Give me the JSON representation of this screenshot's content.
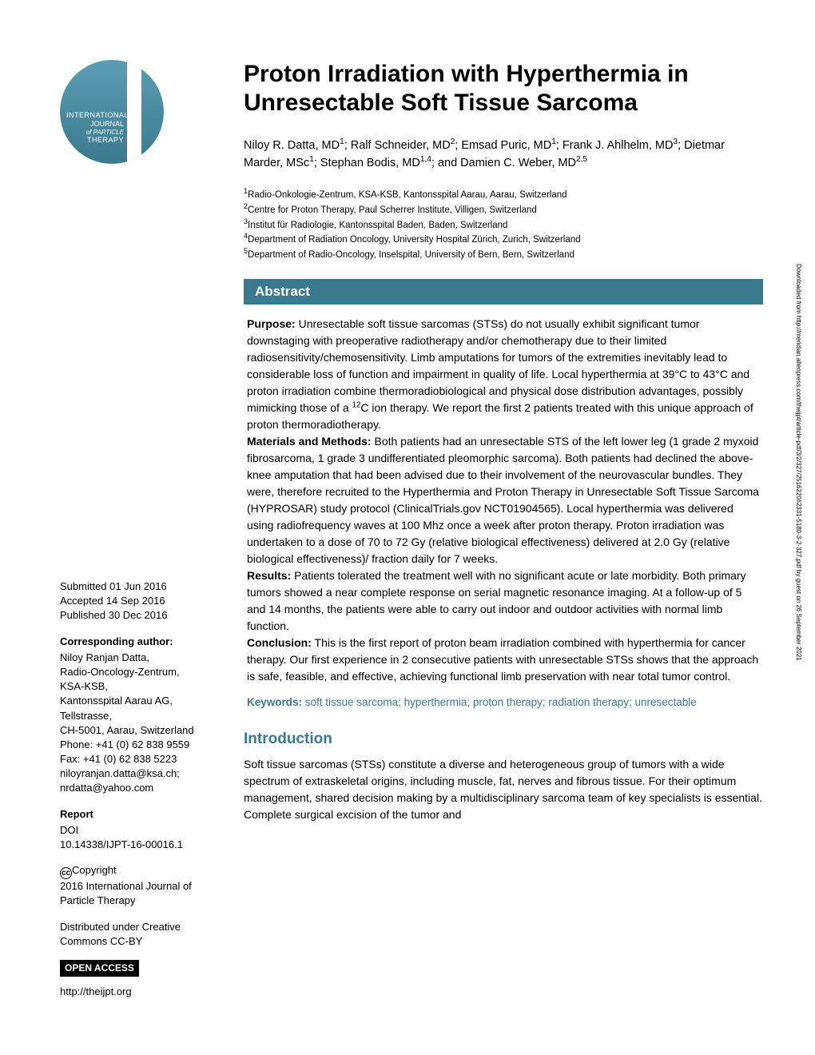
{
  "colors": {
    "brand": "#3b7a8e",
    "brand_light": "#5c9db3",
    "text": "#000000",
    "bg": "#ffffff",
    "badge_bg": "#000000",
    "badge_text": "#ffffff"
  },
  "logo": {
    "line1": "INTERNATIONAL",
    "line2": "JOURNAL",
    "line3": "of PARTICLE",
    "line4": "THERAPY"
  },
  "title": "Proton Irradiation with Hyperthermia in Unresectable Soft Tissue Sarcoma",
  "authors_html": "Niloy R. Datta, MD<sup>1</sup>; Ralf Schneider, MD<sup>2</sup>; Emsad Puric, MD<sup>1</sup>; Frank J. Ahlhelm, MD<sup>3</sup>; Dietmar Marder, MSc<sup>1</sup>; Stephan Bodis, MD<sup>1,4</sup>; and Damien C. Weber, MD<sup>2,5</sup>",
  "affiliations": [
    "Radio-Onkologie-Zentrum, KSA-KSB, Kantonsspital Aarau, Aarau, Switzerland",
    "Centre for Proton Therapy, Paul Scherrer Institute, Villigen, Switzerland",
    "Institut für Radiologie, Kantonsspital Baden, Baden, Switzerland",
    "Department of Radiation Oncology, University Hospital Zürich, Zurich, Switzerland",
    "Department of Radio-Oncology, Inselspital, University of Bern, Bern, Switzerland"
  ],
  "dates": {
    "submitted": "Submitted 01 Jun 2016",
    "accepted": "Accepted 14 Sep 2016",
    "published": "Published 30 Dec 2016"
  },
  "corresponding": {
    "heading": "Corresponding author:",
    "lines": [
      "Niloy Ranjan Datta,",
      "Radio-Oncology-Zentrum,",
      "KSA-KSB,",
      "Kantonsspital Aarau AG,",
      "Tellstrasse,",
      "CH-5001, Aarau, Switzerland",
      "Phone: +41 (0) 62 838 9559",
      "Fax: +41 (0) 62 838 5223",
      "niloyranjan.datta@ksa.ch;",
      "nrdatta@yahoo.com"
    ]
  },
  "report": {
    "heading": "Report",
    "doi_label": "DOI",
    "doi": "10.14338/IJPT-16-00016.1"
  },
  "copyright_text": "Copyright",
  "copyright_line": "2016 International Journal of Particle Therapy",
  "distributed": "Distributed under Creative Commons CC-BY",
  "open_access": "OPEN ACCESS",
  "website": "http://theijpt.org",
  "abstract": {
    "heading": "Abstract",
    "purpose_label": "Purpose:",
    "purpose": " Unresectable soft tissue sarcomas (STSs) do not usually exhibit significant tumor downstaging with preoperative radiotherapy and/or chemotherapy due to their limited radiosensitivity/chemosensitivity. Limb amputations for tumors of the extremities inevitably lead to considerable loss of function and impairment in quality of life. Local hyperthermia at 39°C to 43°C and proton irradiation combine thermoradiobiological and physical dose distribution advantages, possibly mimicking those of a ",
    "purpose_sup": "12",
    "purpose_cont": "C ion therapy. We report the first 2 patients treated with this unique approach of proton thermoradiotherapy.",
    "methods_label": "Materials and Methods:",
    "methods": " Both patients had an unresectable STS of the left lower leg (1 grade 2 myxoid fibrosarcoma, 1 grade 3 undifferentiated pleomorphic sarcoma). Both patients had declined the above-knee amputation that had been advised due to their involvement of the neurovascular bundles. They were, therefore recruited to the Hyperthermia and Proton Therapy in Unresectable Soft Tissue Sarcoma (HYPROSAR) study protocol (ClinicalTrials.gov NCT01904565). Local hyperthermia was delivered using radiofrequency waves at 100 Mhz once a week after proton therapy. Proton irradiation was undertaken to a dose of 70 to 72 Gy (relative biological effectiveness) delivered at 2.0 Gy (relative biological effectiveness)/ fraction daily for 7 weeks.",
    "results_label": "Results:",
    "results": " Patients tolerated the treatment well with no significant acute or late morbidity. Both primary tumors showed a near complete response on serial magnetic resonance imaging. At a follow-up of 5 and 14 months, the patients were able to carry out indoor and outdoor activities with normal limb function.",
    "conclusion_label": "Conclusion:",
    "conclusion": " This is the first report of proton beam irradiation combined with hyperthermia for cancer therapy. Our first experience in 2 consecutive patients with unresectable STSs shows that the approach is safe, feasible, and effective, achieving functional limb preservation with near total tumor control."
  },
  "keywords": {
    "label": "Keywords:",
    "text": " soft tissue sarcoma; hyperthermia; proton therapy; radiation therapy; unresectable"
  },
  "intro": {
    "heading": "Introduction",
    "body": "Soft tissue sarcomas (STSs) constitute a diverse and heterogeneous group of tumors with a wide spectrum of extraskeletal origins, including muscle, fat, nerves and fibrous tissue. For their optimum management, shared decision making by a multidisciplinary sarcoma team of key specialists is essential. Complete surgical excision of the tumor and"
  },
  "side_note": "Downloaded from http://meridian.allenpress.com/theijpt/article-pdf/3/2/327/2516220/i2331-5180-3-2-327.pdf by guest on 26 September 2021"
}
